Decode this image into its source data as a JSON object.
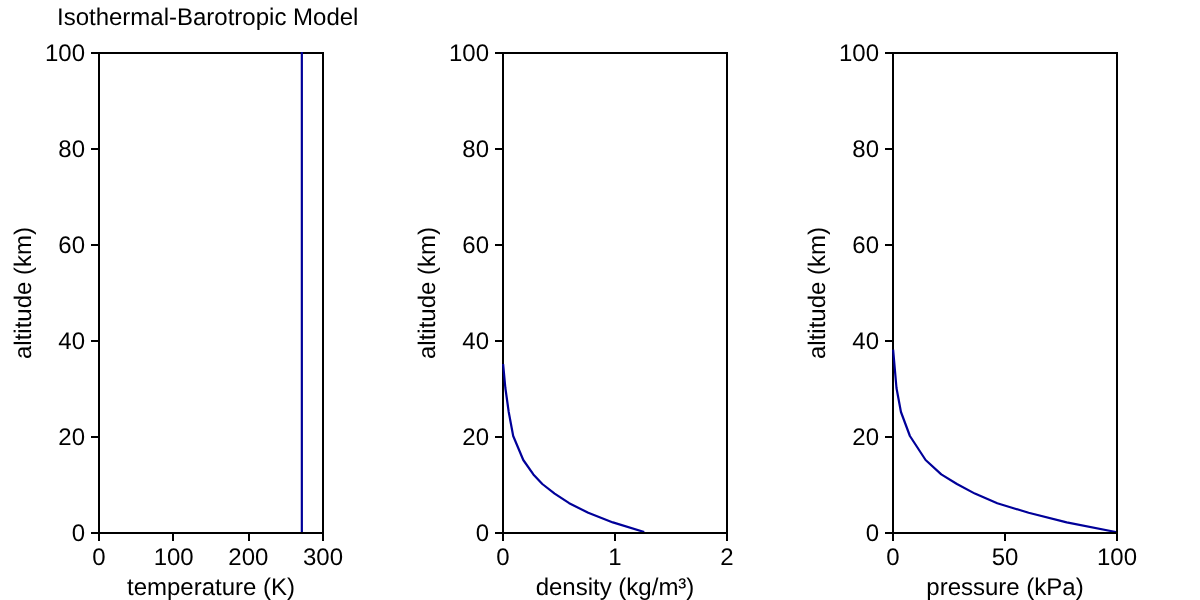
{
  "chart_data": [
    {
      "type": "line",
      "title": "Isothermal-Barotropic Model",
      "xlabel": "temperature (K)",
      "ylabel": "altitude (km)",
      "xlim": [
        0,
        300
      ],
      "xticks": [
        0,
        100,
        200,
        300
      ],
      "ylim": [
        0,
        100
      ],
      "yticks": [
        0,
        20,
        40,
        60,
        80,
        100
      ],
      "series": [
        {
          "color": "#000099",
          "x": [
            273,
            273
          ],
          "values": [
            0,
            100
          ]
        }
      ]
    },
    {
      "type": "line",
      "xlabel": "density (kg/m³)",
      "ylabel": "altitude (km)",
      "xlim": [
        0,
        2
      ],
      "xticks": [
        0,
        1,
        2
      ],
      "ylim": [
        0,
        100
      ],
      "yticks": [
        0,
        20,
        40,
        60,
        80,
        100
      ],
      "series": [
        {
          "color": "#000099",
          "x": [
            1.27,
            0.99,
            0.77,
            0.6,
            0.47,
            0.36,
            0.28,
            0.19,
            0.1,
            0.06,
            0.03,
            0.01
          ],
          "values": [
            0,
            2,
            4,
            6,
            8,
            10,
            12,
            15,
            20,
            25,
            30,
            35
          ]
        }
      ]
    },
    {
      "type": "line",
      "xlabel": "pressure (kPa)",
      "ylabel": "altitude (km)",
      "xlim": [
        0,
        100
      ],
      "xticks": [
        0,
        50,
        100
      ],
      "ylim": [
        0,
        100
      ],
      "yticks": [
        0,
        20,
        40,
        60,
        80,
        100
      ],
      "series": [
        {
          "color": "#000099",
          "x": [
            100,
            78,
            61,
            47,
            37,
            29,
            22,
            15,
            8,
            4,
            2,
            0.5
          ],
          "values": [
            0,
            2,
            4,
            6,
            8,
            10,
            12,
            15,
            20,
            25,
            30,
            38
          ]
        }
      ]
    }
  ]
}
